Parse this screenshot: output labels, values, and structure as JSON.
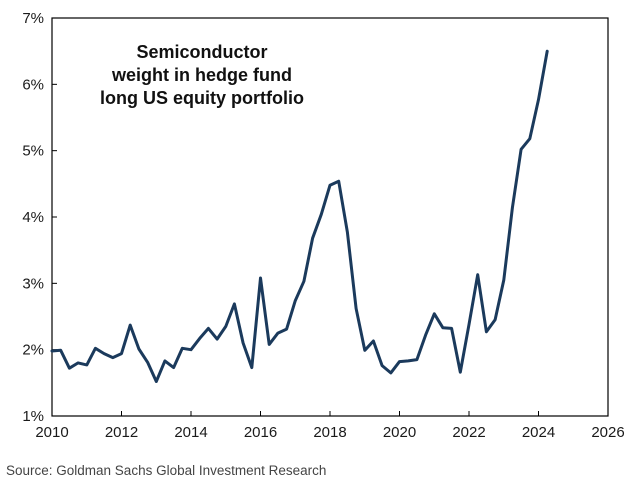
{
  "chart_data": {
    "type": "line",
    "title_lines": [
      "Semiconductor",
      "weight in hedge fund",
      "long US equity portfolio"
    ],
    "xlabel": "",
    "ylabel": "",
    "xlim": [
      2010,
      2026
    ],
    "ylim": [
      1,
      7
    ],
    "x_ticks": [
      2010,
      2012,
      2014,
      2016,
      2018,
      2020,
      2022,
      2024,
      2026
    ],
    "x_tick_labels": [
      "2010",
      "2012",
      "2014",
      "2016",
      "2018",
      "2020",
      "2022",
      "2024",
      "2026"
    ],
    "y_ticks": [
      1,
      2,
      3,
      4,
      5,
      6,
      7
    ],
    "y_tick_labels": [
      "1%",
      "2%",
      "3%",
      "4%",
      "5%",
      "6%",
      "7%"
    ],
    "grid": false,
    "series": [
      {
        "name": "Semiconductor weight",
        "color": "#1b3a5c",
        "x": [
          2010.0,
          2010.25,
          2010.5,
          2010.75,
          2011.0,
          2011.25,
          2011.5,
          2011.75,
          2012.0,
          2012.25,
          2012.5,
          2012.75,
          2013.0,
          2013.25,
          2013.5,
          2013.75,
          2014.0,
          2014.25,
          2014.5,
          2014.75,
          2015.0,
          2015.25,
          2015.5,
          2015.75,
          2016.0,
          2016.25,
          2016.5,
          2016.75,
          2017.0,
          2017.25,
          2017.5,
          2017.75,
          2018.0,
          2018.25,
          2018.5,
          2018.75,
          2019.0,
          2019.25,
          2019.5,
          2019.75,
          2020.0,
          2020.25,
          2020.5,
          2020.75,
          2021.0,
          2021.25,
          2021.5,
          2021.75,
          2022.0,
          2022.25,
          2022.5,
          2022.75,
          2023.0,
          2023.25,
          2023.5,
          2023.75,
          2024.0,
          2024.25
        ],
        "values": [
          1.98,
          1.99,
          1.72,
          1.8,
          1.77,
          2.02,
          1.94,
          1.88,
          1.94,
          2.37,
          2.01,
          1.81,
          1.52,
          1.83,
          1.73,
          2.02,
          2.0,
          2.17,
          2.32,
          2.16,
          2.35,
          2.69,
          2.1,
          1.73,
          3.08,
          2.08,
          2.25,
          2.31,
          2.74,
          3.03,
          3.68,
          4.04,
          4.48,
          4.54,
          3.77,
          2.62,
          1.99,
          2.13,
          1.76,
          1.65,
          1.82,
          1.83,
          1.85,
          2.22,
          2.54,
          2.33,
          2.32,
          1.66,
          2.38,
          3.13,
          2.27,
          2.45,
          3.05,
          4.14,
          5.02,
          5.18,
          5.77,
          6.5
        ]
      }
    ]
  },
  "source": "Source: Goldman Sachs Global Investment Research"
}
